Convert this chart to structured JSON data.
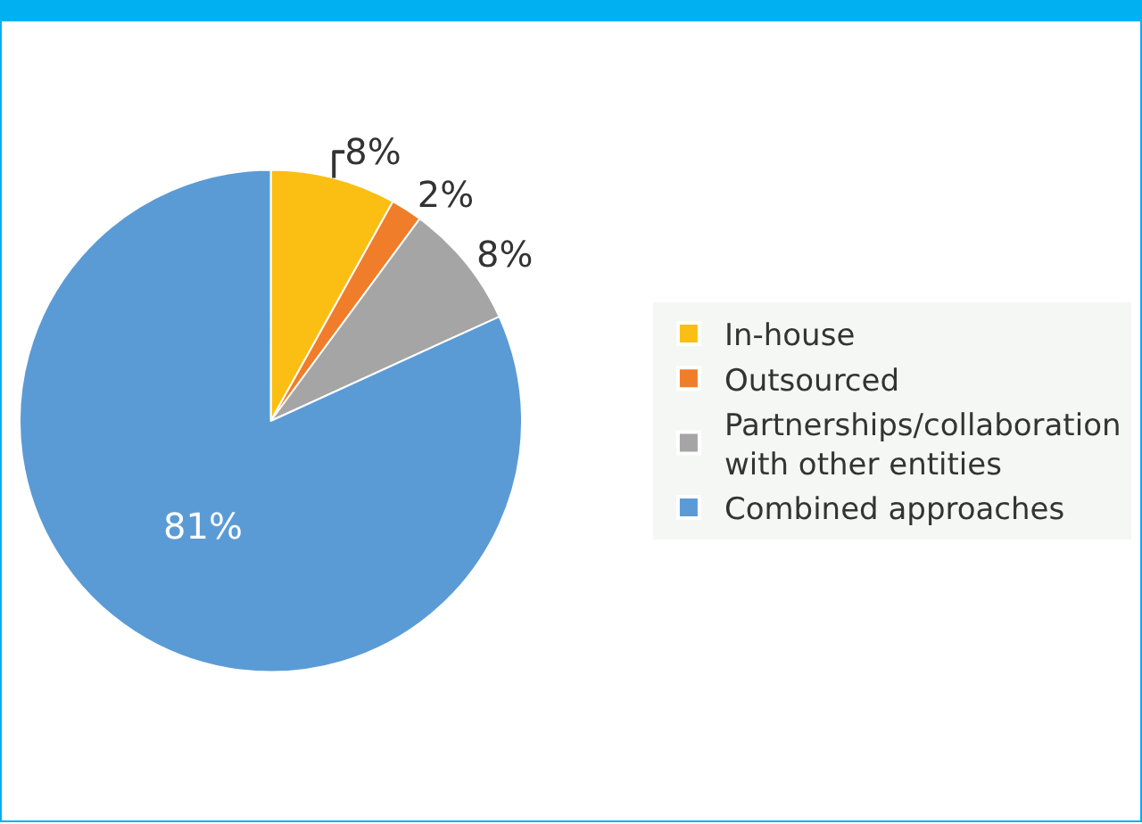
{
  "chart_data": {
    "type": "pie",
    "categories": [
      "In-house",
      "Outsourced",
      "Partnerships/collaboration with other entities",
      "Combined approaches"
    ],
    "values": [
      8,
      2,
      8,
      81
    ],
    "colors": [
      "#fbbf14",
      "#f07d2a",
      "#a5a5a5",
      "#5b9bd5"
    ],
    "value_labels": [
      "8%",
      "2%",
      "8%",
      "81%"
    ],
    "legend": "right"
  }
}
